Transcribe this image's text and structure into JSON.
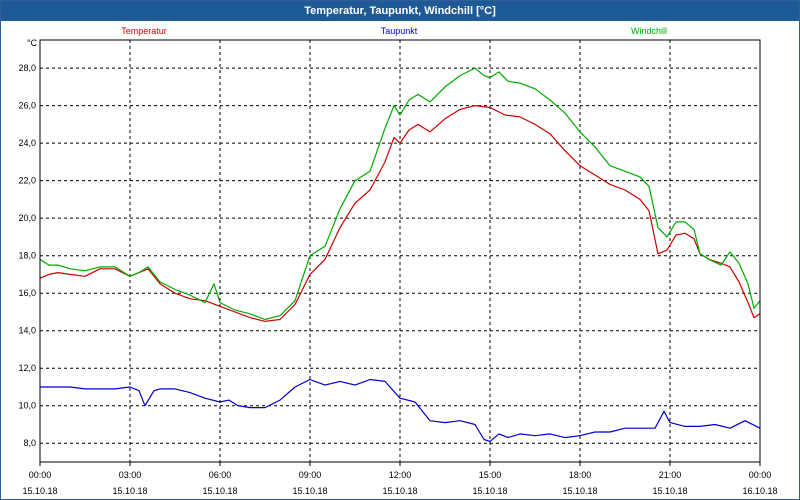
{
  "window": {
    "title": "Temperatur, Taupunkt, Windchill [°C]"
  },
  "chart_data": {
    "type": "line",
    "title": "Temperatur, Taupunkt, Windchill [°C]",
    "ylabel": "°C",
    "ylim": [
      7,
      29.5
    ],
    "xlim": [
      0,
      24
    ],
    "grid": true,
    "legend_placement": "top",
    "y_ticks": [
      "8,0",
      "10,0",
      "12,0",
      "14,0",
      "16,0",
      "18,0",
      "20,0",
      "22,0",
      "24,0",
      "26,0",
      "28,0"
    ],
    "x_ticks": [
      {
        "time": "00:00",
        "date": "15.10.18"
      },
      {
        "time": "03:00",
        "date": "15.10.18"
      },
      {
        "time": "06:00",
        "date": "15.10.18"
      },
      {
        "time": "09:00",
        "date": "15.10.18"
      },
      {
        "time": "12:00",
        "date": "15.10.18"
      },
      {
        "time": "15:00",
        "date": "15.10.18"
      },
      {
        "time": "18:00",
        "date": "15.10.18"
      },
      {
        "time": "21:00",
        "date": "15.10.18"
      },
      {
        "time": "00:00",
        "date": "16.10.18"
      }
    ],
    "series": [
      {
        "name": "Temperatur",
        "color": "#cc0000",
        "x": [
          0,
          0.3,
          0.6,
          1,
          1.5,
          2,
          2.5,
          3,
          3.3,
          3.6,
          4,
          4.5,
          5,
          5.5,
          6,
          6.5,
          7,
          7.5,
          8,
          8.5,
          9,
          9.5,
          10,
          10.5,
          11,
          11.5,
          11.8,
          12,
          12.3,
          12.6,
          13,
          13.5,
          14,
          14.5,
          15,
          15.5,
          16,
          16.5,
          17,
          17.5,
          18,
          18.5,
          19,
          19.5,
          20,
          20.3,
          20.6,
          20.9,
          21.2,
          21.5,
          21.8,
          22,
          22.3,
          22.7,
          23,
          23.3,
          23.6,
          23.8,
          24
        ],
        "y": [
          16.8,
          17.0,
          17.1,
          17.0,
          16.9,
          17.3,
          17.3,
          16.9,
          17.1,
          17.3,
          16.5,
          16.0,
          15.7,
          15.6,
          15.3,
          15.0,
          14.7,
          14.5,
          14.6,
          15.4,
          17.0,
          17.8,
          19.5,
          20.8,
          21.5,
          23.0,
          24.3,
          24.0,
          24.7,
          25.0,
          24.6,
          25.3,
          25.8,
          26.0,
          25.9,
          25.5,
          25.4,
          25.0,
          24.5,
          23.6,
          22.8,
          22.3,
          21.8,
          21.5,
          21.0,
          20.4,
          18.1,
          18.3,
          19.1,
          19.2,
          18.9,
          18.1,
          17.8,
          17.6,
          17.4,
          16.6,
          15.5,
          14.7,
          14.9
        ]
      },
      {
        "name": "Taupunkt",
        "color": "#0000cc",
        "x": [
          0,
          0.5,
          1,
          1.5,
          2,
          2.5,
          3,
          3.3,
          3.5,
          3.8,
          4,
          4.5,
          5,
          5.5,
          6,
          6.3,
          6.6,
          7,
          7.5,
          8,
          8.5,
          9,
          9.5,
          10,
          10.5,
          11,
          11.5,
          12,
          12.5,
          13,
          13.5,
          14,
          14.5,
          14.8,
          15,
          15.3,
          15.6,
          16,
          16.5,
          17,
          17.5,
          18,
          18.5,
          19,
          19.5,
          20,
          20.5,
          20.8,
          21,
          21.5,
          22,
          22.5,
          23,
          23.5,
          24
        ],
        "y": [
          11.0,
          11.0,
          11.0,
          10.9,
          10.9,
          10.9,
          11.0,
          10.8,
          10.0,
          10.8,
          10.9,
          10.9,
          10.7,
          10.4,
          10.2,
          10.3,
          10.0,
          9.9,
          9.9,
          10.3,
          11.0,
          11.4,
          11.1,
          11.3,
          11.1,
          11.4,
          11.3,
          10.4,
          10.2,
          9.2,
          9.1,
          9.2,
          9.0,
          8.2,
          8.1,
          8.5,
          8.3,
          8.5,
          8.4,
          8.5,
          8.3,
          8.4,
          8.6,
          8.6,
          8.8,
          8.8,
          8.8,
          9.7,
          9.1,
          8.9,
          8.9,
          9.0,
          8.8,
          9.2,
          8.8
        ]
      },
      {
        "name": "Windchill",
        "color": "#00aa00",
        "x": [
          0,
          0.3,
          0.6,
          1,
          1.5,
          2,
          2.5,
          3,
          3.3,
          3.6,
          4,
          4.5,
          5,
          5.5,
          5.8,
          6,
          6.5,
          7,
          7.5,
          8,
          8.5,
          9,
          9.5,
          10,
          10.5,
          11,
          11.5,
          11.8,
          12,
          12.3,
          12.6,
          13,
          13.5,
          14,
          14.5,
          14.8,
          15,
          15.3,
          15.6,
          16,
          16.5,
          17,
          17.5,
          18,
          18.5,
          19,
          19.5,
          20,
          20.3,
          20.6,
          20.9,
          21.2,
          21.5,
          21.8,
          22,
          22.3,
          22.7,
          23,
          23.3,
          23.6,
          23.8,
          24
        ],
        "y": [
          17.8,
          17.5,
          17.5,
          17.3,
          17.2,
          17.4,
          17.4,
          16.9,
          17.1,
          17.4,
          16.6,
          16.2,
          15.9,
          15.5,
          16.5,
          15.5,
          15.1,
          14.9,
          14.6,
          14.8,
          15.6,
          18.0,
          18.5,
          20.5,
          22.0,
          22.5,
          24.8,
          26.0,
          25.5,
          26.3,
          26.6,
          26.2,
          27.0,
          27.6,
          28.0,
          27.6,
          27.5,
          27.8,
          27.3,
          27.2,
          26.9,
          26.3,
          25.6,
          24.6,
          23.8,
          22.8,
          22.5,
          22.2,
          21.7,
          19.5,
          19.0,
          19.8,
          19.8,
          19.4,
          18.1,
          17.8,
          17.5,
          18.2,
          17.6,
          16.5,
          15.2,
          15.6
        ]
      }
    ]
  }
}
